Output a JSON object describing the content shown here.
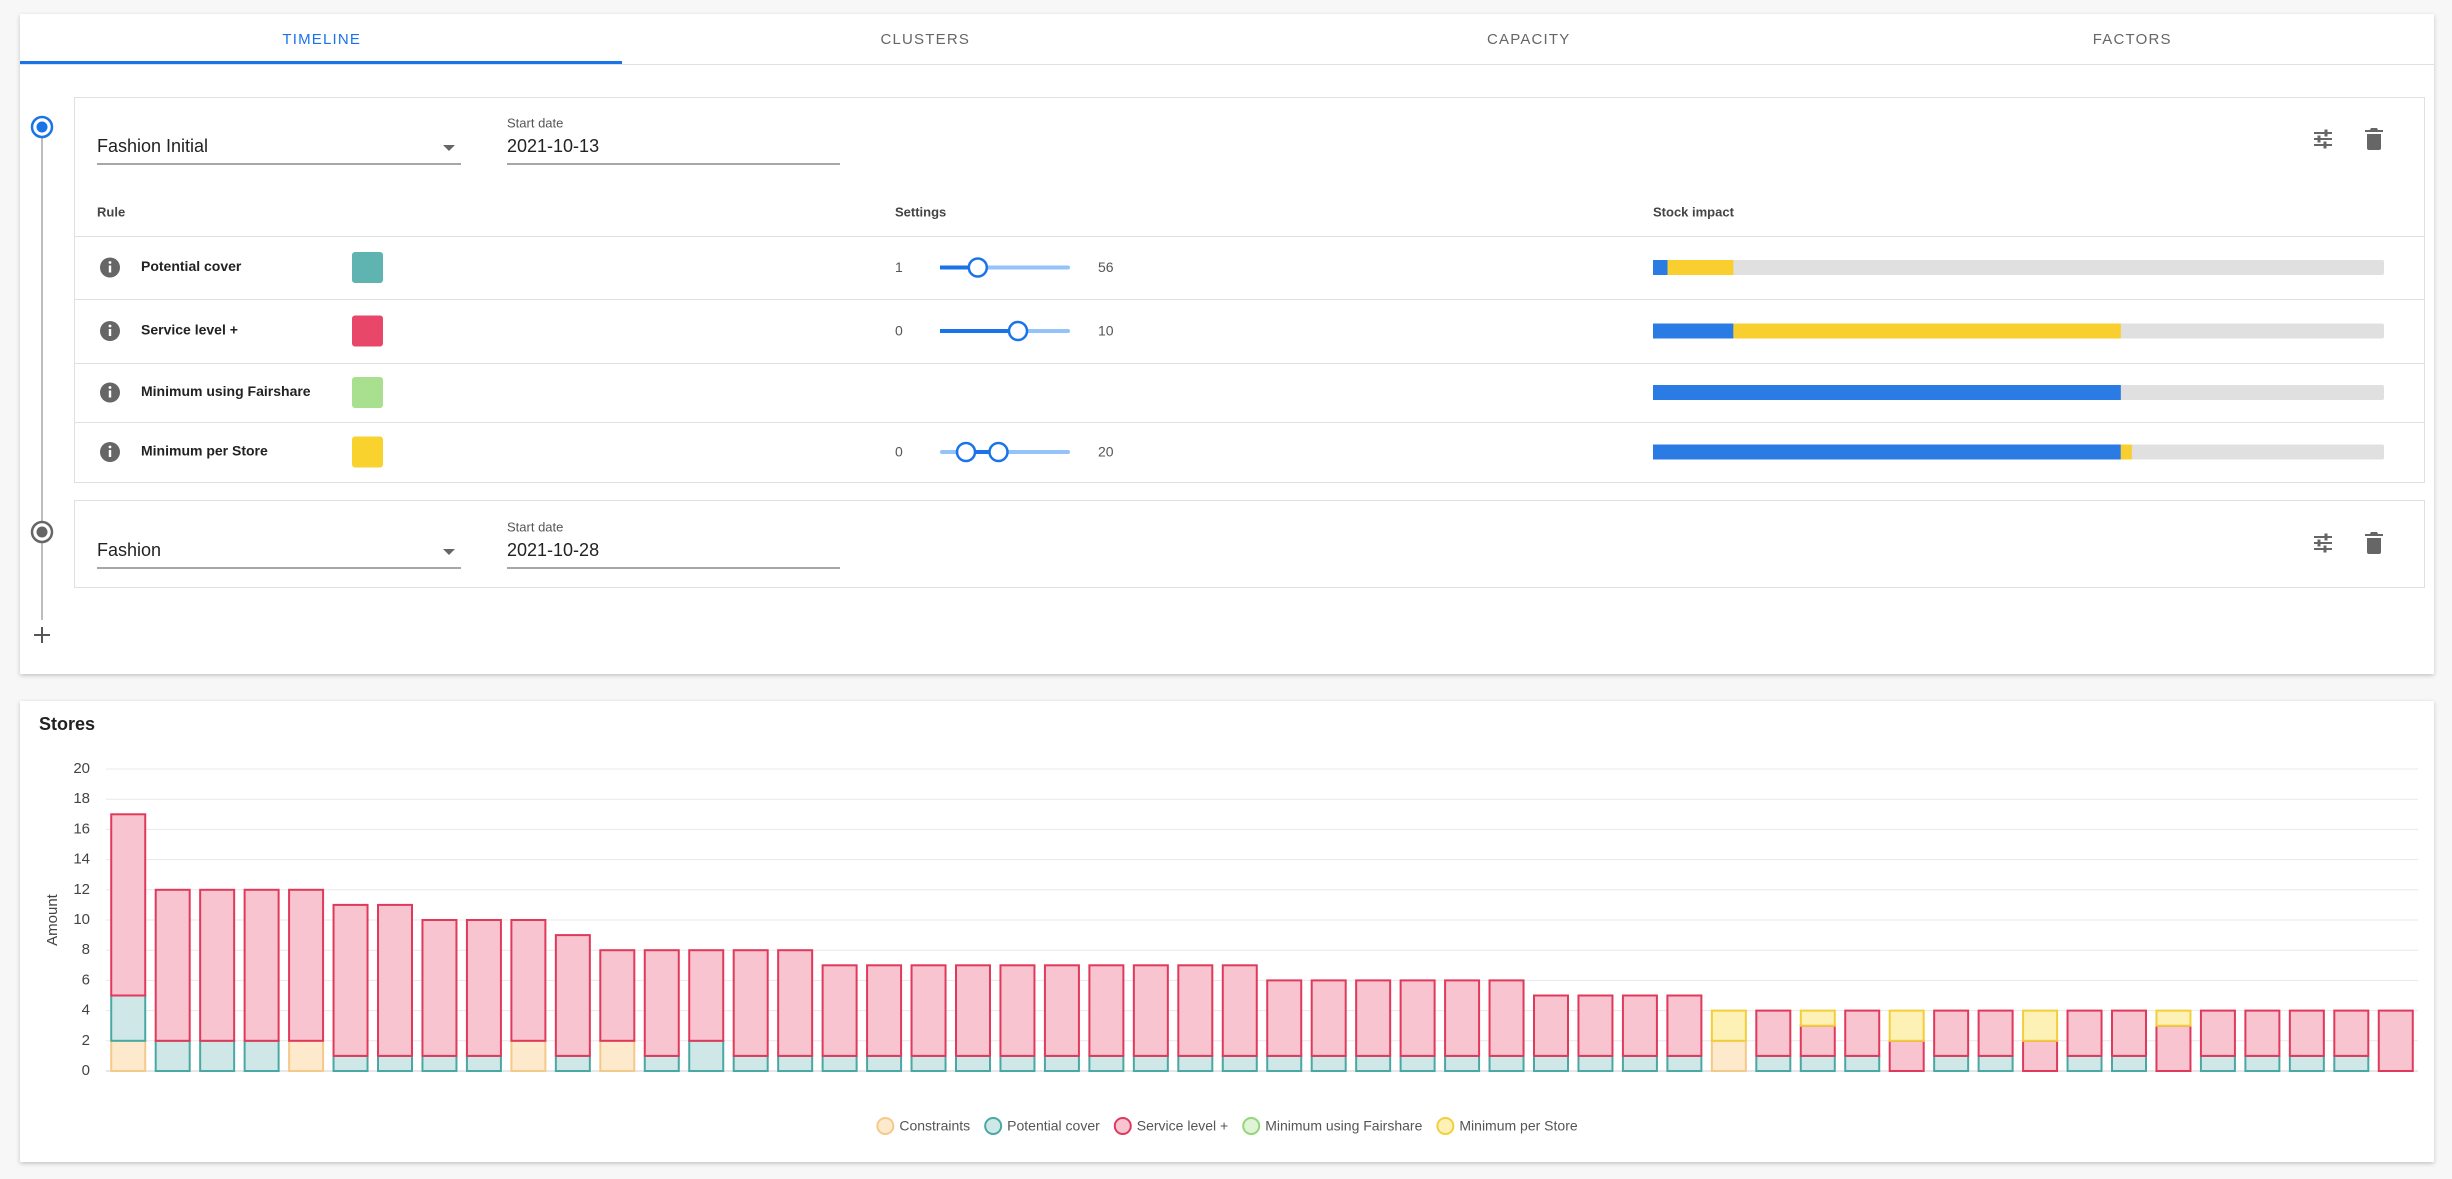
{
  "tabs": [
    "TIMELINE",
    "CLUSTERS",
    "CAPACITY",
    "FACTORS"
  ],
  "impact_colors": [
    "#2b7be5",
    "#f8cf2f"
  ],
  "timeline": [
    {
      "scenario": "Fashion Initial",
      "start_date_label": "Start date",
      "start_date": "2021-10-13",
      "columns": [
        "Rule",
        "Settings",
        "Stock impact"
      ],
      "rules": [
        {
          "name": "Potential cover",
          "color": "#5fb3b0",
          "min": 1,
          "max": 56,
          "values": [
            17
          ],
          "impact": [
            2,
            9
          ]
        },
        {
          "name": "Service level +",
          "color": "#e8476a",
          "min": 0,
          "max": 10,
          "values": [
            6
          ],
          "impact": [
            11,
            53
          ]
        },
        {
          "name": "Minimum using Fairshare",
          "color": "#a8e08f",
          "impact": [
            64,
            0
          ]
        },
        {
          "name": "Minimum per Store",
          "color": "#f9d22e",
          "min": 0,
          "max": 20,
          "values": [
            4,
            9
          ],
          "impact": [
            64,
            1.5
          ]
        }
      ]
    },
    {
      "scenario": "Fashion",
      "start_date_label": "Start date",
      "start_date": "2021-10-28"
    }
  ],
  "chart_data": {
    "type": "bar",
    "stacked": true,
    "title": "Stores",
    "ylabel": "Amount",
    "categories": [
      null,
      null,
      null,
      null,
      null,
      null,
      null,
      null,
      null,
      null,
      null,
      null,
      null,
      null,
      null,
      null,
      null,
      null,
      null,
      null,
      null,
      null,
      null,
      null,
      null,
      null,
      null,
      null,
      null,
      null,
      null,
      null,
      null,
      null,
      null,
      null,
      null,
      null,
      null,
      null,
      null,
      null,
      null,
      null,
      null,
      null,
      null,
      null,
      null,
      null,
      null,
      null
    ],
    "ylim": [
      0,
      20
    ],
    "yticks": [
      0,
      2,
      4,
      6,
      8,
      10,
      12,
      14,
      16,
      18,
      20
    ],
    "grid": true,
    "legend": "bottom",
    "series": [
      {
        "name": "Constraints",
        "color": "#f5c98a",
        "fill": "#fde9cc",
        "values": [
          2,
          0,
          0,
          0,
          2,
          0,
          0,
          0,
          0,
          2,
          0,
          2,
          0,
          0,
          0,
          0,
          0,
          0,
          0,
          0,
          0,
          0,
          0,
          0,
          0,
          0,
          0,
          0,
          0,
          0,
          0,
          0,
          0,
          0,
          0,
          0,
          2,
          0,
          0,
          0,
          0,
          0,
          0,
          0,
          0,
          0,
          0,
          0,
          0,
          0,
          0,
          0
        ]
      },
      {
        "name": "Potential cover",
        "color": "#4aa8a4",
        "fill": "#cfe8e7",
        "values": [
          3,
          2,
          2,
          2,
          0,
          1,
          1,
          1,
          1,
          0,
          1,
          0,
          1,
          2,
          1,
          1,
          1,
          1,
          1,
          1,
          1,
          1,
          1,
          1,
          1,
          1,
          1,
          1,
          1,
          1,
          1,
          1,
          1,
          1,
          1,
          1,
          0,
          1,
          1,
          1,
          0,
          1,
          1,
          0,
          1,
          1,
          0,
          1,
          1,
          1,
          1,
          0
        ]
      },
      {
        "name": "Service level +",
        "color": "#e0395c",
        "fill": "#f7c4cf",
        "values": [
          12,
          10,
          10,
          10,
          10,
          10,
          10,
          9,
          9,
          8,
          8,
          6,
          7,
          6,
          7,
          7,
          6,
          6,
          6,
          6,
          6,
          6,
          6,
          6,
          6,
          6,
          5,
          5,
          5,
          5,
          5,
          5,
          4,
          4,
          4,
          4,
          0,
          3,
          2,
          3,
          2,
          3,
          3,
          2,
          3,
          3,
          3,
          3,
          3,
          3,
          3,
          4
        ]
      },
      {
        "name": "Minimum using Fairshare",
        "color": "#93d67a",
        "fill": "#dff3d6",
        "values": [
          0,
          0,
          0,
          0,
          0,
          0,
          0,
          0,
          0,
          0,
          0,
          0,
          0,
          0,
          0,
          0,
          0,
          0,
          0,
          0,
          0,
          0,
          0,
          0,
          0,
          0,
          0,
          0,
          0,
          0,
          0,
          0,
          0,
          0,
          0,
          0,
          0,
          0,
          0,
          0,
          0,
          0,
          0,
          0,
          0,
          0,
          0,
          0,
          0,
          0,
          0,
          0
        ]
      },
      {
        "name": "Minimum per Store",
        "color": "#f2cf3a",
        "fill": "#fdf1b6",
        "values": [
          0,
          0,
          0,
          0,
          0,
          0,
          0,
          0,
          0,
          0,
          0,
          0,
          0,
          0,
          0,
          0,
          0,
          0,
          0,
          0,
          0,
          0,
          0,
          0,
          0,
          0,
          0,
          0,
          0,
          0,
          0,
          0,
          0,
          0,
          0,
          0,
          2,
          0,
          1,
          0,
          2,
          0,
          0,
          2,
          0,
          0,
          1,
          0,
          0,
          0,
          0,
          0
        ]
      }
    ]
  }
}
